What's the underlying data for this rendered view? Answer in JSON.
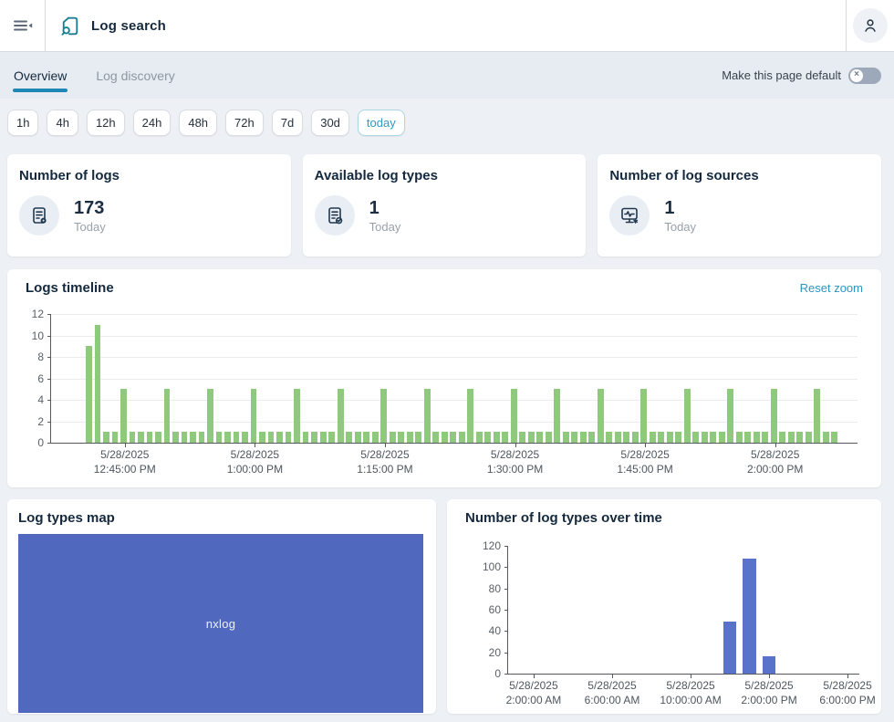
{
  "header": {
    "title": "Log search"
  },
  "tabs": {
    "items": [
      {
        "label": "Overview",
        "active": true
      },
      {
        "label": "Log discovery",
        "active": false
      }
    ],
    "make_default_label": "Make this page default",
    "make_default_state": "off"
  },
  "time_ranges": {
    "items": [
      {
        "label": "1h",
        "active": false
      },
      {
        "label": "4h",
        "active": false
      },
      {
        "label": "12h",
        "active": false
      },
      {
        "label": "24h",
        "active": false
      },
      {
        "label": "48h",
        "active": false
      },
      {
        "label": "72h",
        "active": false
      },
      {
        "label": "7d",
        "active": false
      },
      {
        "label": "30d",
        "active": false
      },
      {
        "label": "today",
        "active": true
      }
    ]
  },
  "stat_cards": [
    {
      "title": "Number of logs",
      "value": "173",
      "period": "Today",
      "icon": "log-file-icon"
    },
    {
      "title": "Available log types",
      "value": "1",
      "period": "Today",
      "icon": "log-type-icon"
    },
    {
      "title": "Number of log sources",
      "value": "1",
      "period": "Today",
      "icon": "log-source-icon"
    }
  ],
  "timeline": {
    "title": "Logs timeline",
    "reset_label": "Reset zoom"
  },
  "types_map": {
    "title": "Log types map",
    "items": [
      {
        "label": "nxlog",
        "color": "#5069bf"
      }
    ]
  },
  "types_over_time": {
    "title": "Number of log types over time"
  },
  "colors": {
    "accent_blue": "#2e9ac5",
    "tab_underline": "#1e87b6",
    "teal_icon": "#1a7f93",
    "green_bars": "#8fc97e",
    "indigo": "#5069bf",
    "indigo_bars": "#5873c9",
    "navy_text": "#14293e"
  },
  "chart_data": [
    {
      "type": "bar",
      "title": "Logs timeline",
      "bar_color": "#8fc97e",
      "ylim": [
        0,
        12
      ],
      "yticks": [
        0,
        2,
        4,
        6,
        8,
        10,
        12
      ],
      "x_start": "5/28/2025 12:41:00 PM",
      "x_bin": "1 minute",
      "values": [
        9,
        11,
        1,
        1,
        5,
        1,
        1,
        1,
        1,
        5,
        1,
        1,
        1,
        1,
        5,
        1,
        1,
        1,
        1,
        5,
        1,
        1,
        1,
        1,
        5,
        1,
        1,
        1,
        1,
        5,
        1,
        1,
        1,
        1,
        5,
        1,
        1,
        1,
        1,
        5,
        1,
        1,
        1,
        1,
        5,
        1,
        1,
        1,
        1,
        5,
        1,
        1,
        1,
        1,
        5,
        1,
        1,
        1,
        1,
        5,
        1,
        1,
        1,
        1,
        5,
        1,
        1,
        1,
        1,
        5,
        1,
        1,
        1,
        1,
        5,
        1,
        1,
        1,
        1,
        5,
        1,
        1,
        1,
        1,
        5,
        1,
        1
      ],
      "xticks": [
        {
          "bar_index": 4,
          "line1": "5/28/2025",
          "line2": "12:45:00 PM"
        },
        {
          "bar_index": 19,
          "line1": "5/28/2025",
          "line2": "1:00:00 PM"
        },
        {
          "bar_index": 34,
          "line1": "5/28/2025",
          "line2": "1:15:00 PM"
        },
        {
          "bar_index": 49,
          "line1": "5/28/2025",
          "line2": "1:30:00 PM"
        },
        {
          "bar_index": 64,
          "line1": "5/28/2025",
          "line2": "1:45:00 PM"
        },
        {
          "bar_index": 79,
          "line1": "5/28/2025",
          "line2": "2:00:00 PM"
        }
      ],
      "pad_start": 4,
      "pad_end": 2,
      "grid": true,
      "legend": "none"
    },
    {
      "type": "bar",
      "title": "Number of log types over time",
      "bar_color": "#5873c9",
      "ylim": [
        0,
        120
      ],
      "yticks": [
        0,
        20,
        40,
        60,
        80,
        100,
        120
      ],
      "points": [
        {
          "time": "5/28/2025 12:00:00 PM",
          "hour": 12,
          "value": 49
        },
        {
          "time": "5/28/2025 1:00:00 PM",
          "hour": 13,
          "value": 108
        },
        {
          "time": "5/28/2025 2:00:00 PM",
          "hour": 14,
          "value": 16
        }
      ],
      "bar_width_hours": 0.68,
      "x_domain_hours": [
        0.7,
        18.6
      ],
      "xticks": [
        {
          "hour": 2,
          "line1": "5/28/2025",
          "line2": "2:00:00 AM"
        },
        {
          "hour": 6,
          "line1": "5/28/2025",
          "line2": "6:00:00 AM"
        },
        {
          "hour": 10,
          "line1": "5/28/2025",
          "line2": "10:00:00 AM"
        },
        {
          "hour": 14,
          "line1": "5/28/2025",
          "line2": "2:00:00 PM"
        },
        {
          "hour": 18,
          "line1": "5/28/2025",
          "line2": "6:00:00 PM"
        }
      ],
      "grid": false,
      "legend": "none"
    }
  ]
}
